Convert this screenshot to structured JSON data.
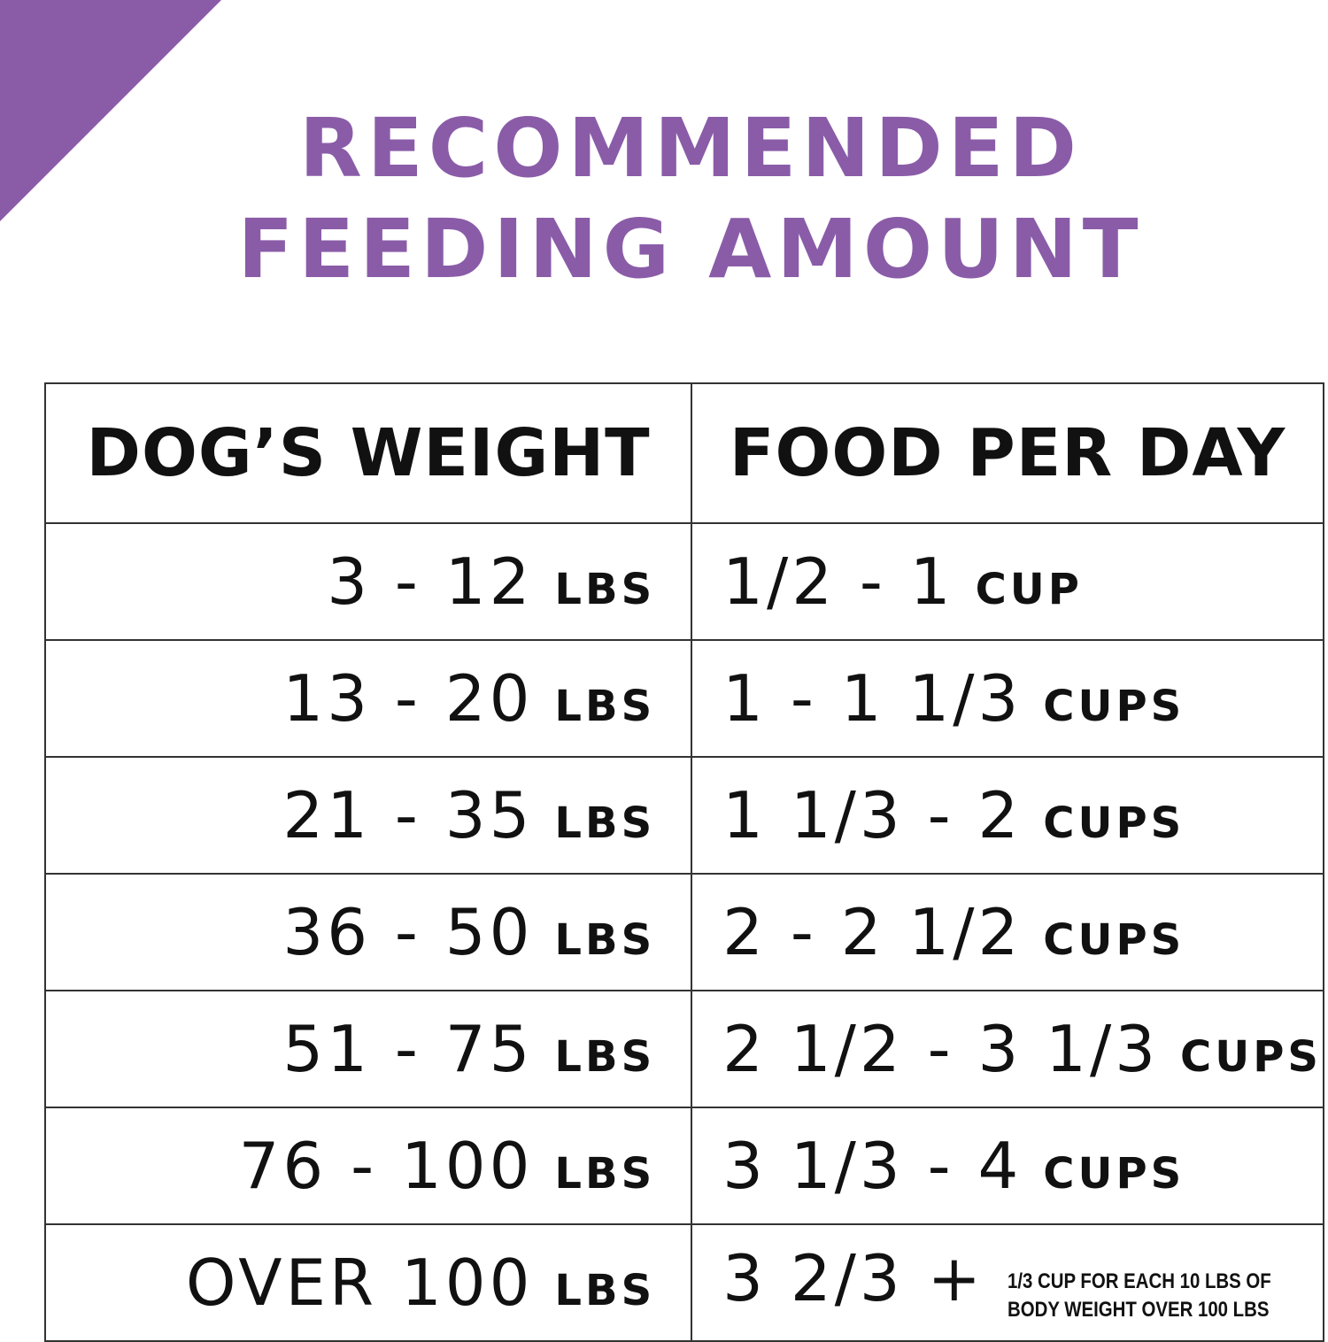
{
  "title": {
    "line1": "RECOMMENDED",
    "line2": "FEEDING AMOUNT"
  },
  "colors": {
    "accent": "#8a5ca8",
    "text": "#111111"
  },
  "table": {
    "headers": [
      "DOG’S WEIGHT",
      "FOOD PER DAY"
    ],
    "rows": [
      {
        "weight": "3 - 12",
        "weight_unit": "LBS",
        "food": "1/2 - 1",
        "food_unit": "CUP"
      },
      {
        "weight": "13 - 20",
        "weight_unit": "LBS",
        "food": "1 - 1 1/3",
        "food_unit": "CUPS"
      },
      {
        "weight": "21 - 35",
        "weight_unit": "LBS",
        "food": "1 1/3 - 2",
        "food_unit": "CUPS"
      },
      {
        "weight": "36 - 50",
        "weight_unit": "LBS",
        "food": "2 - 2 1/2",
        "food_unit": "CUPS"
      },
      {
        "weight": "51 - 75",
        "weight_unit": "LBS",
        "food": "2 1/2 - 3 1/3",
        "food_unit": "CUPS"
      },
      {
        "weight": "76 - 100",
        "weight_unit": "LBS",
        "food": "3 1/3 - 4",
        "food_unit": "CUPS"
      },
      {
        "weight": "OVER 100",
        "weight_unit": "LBS",
        "food": "3 2/3 +",
        "food_note_line1": "1/3 CUP FOR EACH 10 LBS OF",
        "food_note_line2": "BODY WEIGHT OVER 100 LBS"
      }
    ]
  }
}
